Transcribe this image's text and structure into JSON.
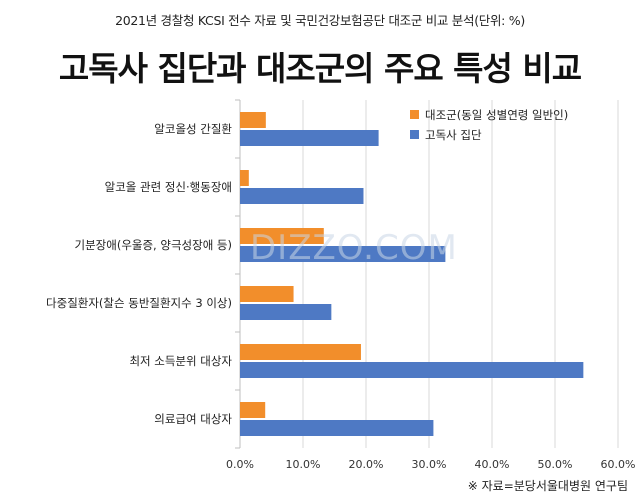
{
  "header": {
    "subtitle": "2021년 경찰청 KCSI 전수 자료 및 국민건강보험공단 대조군 비교 분석(단위: %)",
    "title": "고독사 집단과 대조군의 주요 특성 비교"
  },
  "watermark": "DIZZO.COM",
  "source": "※ 자료=분당서울대병원 연구팀",
  "colors": {
    "control": "#f28e2b",
    "solitary": "#4e79c4",
    "grid": "#d9d9d9",
    "axis": "#bfbfbf"
  },
  "chart_data": {
    "type": "bar",
    "orientation": "horizontal",
    "categories": [
      "알코올성 간질환",
      "알코올 관련 정신·행동장애",
      "기분장애(우울증, 양극성장애 등)",
      "다중질환자(찰슨 동반질환지수 3 이상)",
      "최저 소득분위 대상자",
      "의료급여 대상자"
    ],
    "series": [
      {
        "name": "대조군(동일 성별연령 일반인)",
        "values": [
          4.1,
          1.4,
          13.3,
          8.5,
          19.2,
          4.0
        ]
      },
      {
        "name": "고독사 집단",
        "values": [
          22.0,
          19.6,
          32.6,
          14.5,
          54.5,
          30.7
        ]
      }
    ],
    "xlim": [
      0,
      60
    ],
    "xticks": [
      "0.0%",
      "10.0%",
      "20.0%",
      "30.0%",
      "40.0%",
      "50.0%",
      "60.0%"
    ],
    "grid": true,
    "legend_position": "top-right"
  }
}
